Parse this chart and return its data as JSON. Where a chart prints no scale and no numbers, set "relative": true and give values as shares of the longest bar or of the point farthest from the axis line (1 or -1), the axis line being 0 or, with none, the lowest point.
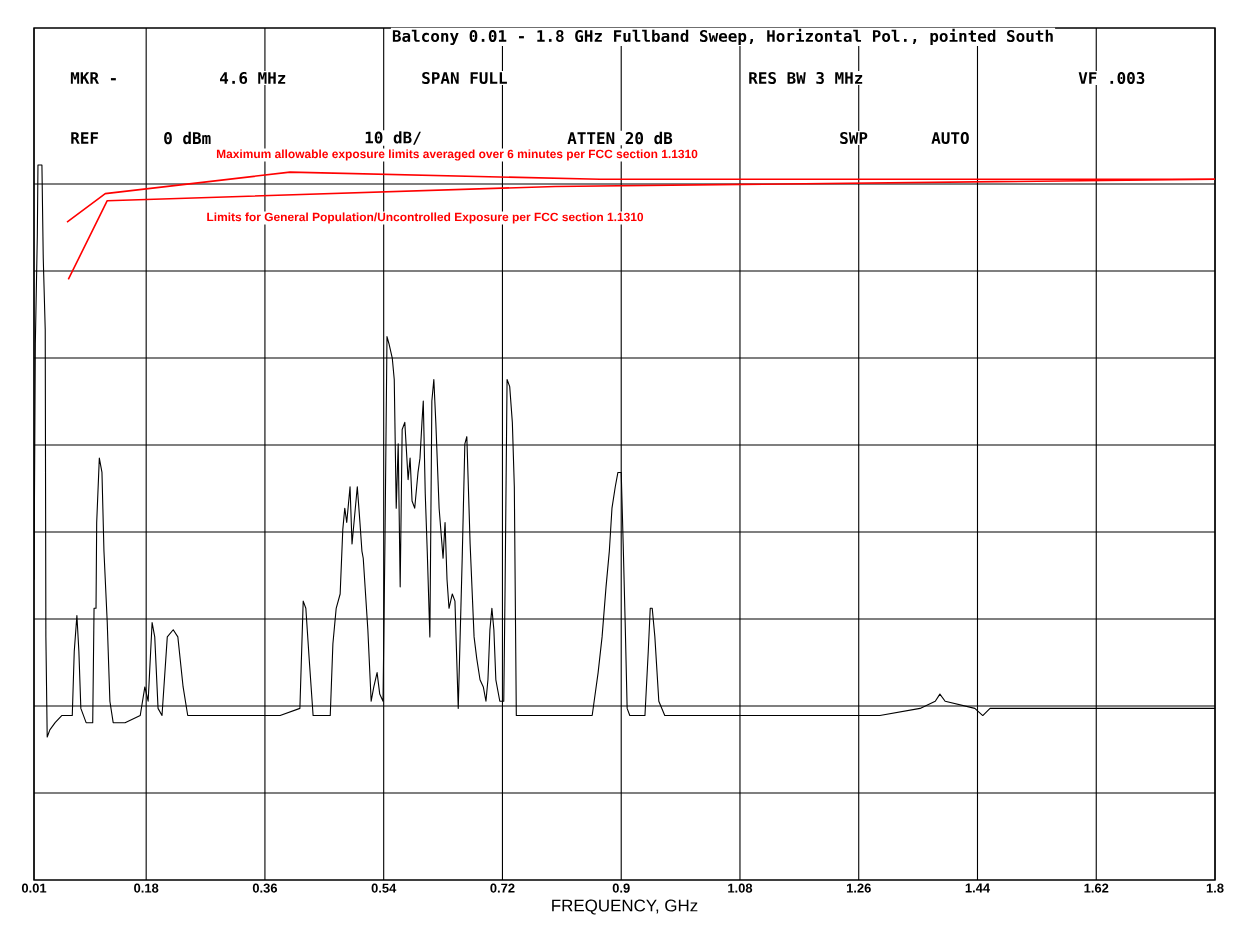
{
  "chart_data": {
    "type": "line",
    "title": "Balcony 0.01 - 1.8 GHz Fullband Sweep, Horizontal Pol., pointed South",
    "xlabel": "FREQUENCY, GHz",
    "annotations": [
      "MKR -",
      "4.6 MHz",
      "SPAN FULL",
      "RES BW 3 MHz",
      "VF .003",
      "REF",
      "0 dBm",
      "10 dB/",
      "ATTEN 20 dB",
      "SWP",
      "AUTO"
    ],
    "relative": true,
    "grid": true,
    "xlim": [
      0.01,
      1.8
    ],
    "xticks": [
      0.01,
      0.18,
      0.36,
      0.54,
      0.72,
      0.9,
      1.08,
      1.26,
      1.44,
      1.62,
      1.8
    ],
    "series": [
      {
        "color": "#000000",
        "x": [
          0.01,
          0.012,
          0.015,
          0.016,
          0.022,
          0.024,
          0.027,
          0.028,
          0.03,
          0.034,
          0.042,
          0.052,
          0.068,
          0.071,
          0.075,
          0.078,
          0.081,
          0.089,
          0.099,
          0.101,
          0.104,
          0.105,
          0.109,
          0.113,
          0.116,
          0.121,
          0.125,
          0.13,
          0.148,
          0.171,
          0.178,
          0.183,
          0.189,
          0.193,
          0.198,
          0.204,
          0.212,
          0.221,
          0.228,
          0.236,
          0.243,
          0.262,
          0.292,
          0.322,
          0.353,
          0.383,
          0.413,
          0.418,
          0.422,
          0.427,
          0.433,
          0.459,
          0.463,
          0.468,
          0.474,
          0.478,
          0.481,
          0.484,
          0.489,
          0.492,
          0.497,
          0.5,
          0.504,
          0.507,
          0.509,
          0.516,
          0.521,
          0.525,
          0.53,
          0.534,
          0.539,
          0.542,
          0.545,
          0.548,
          0.553,
          0.556,
          0.559,
          0.562,
          0.565,
          0.568,
          0.572,
          0.577,
          0.58,
          0.583,
          0.587,
          0.592,
          0.595,
          0.598,
          0.6,
          0.603,
          0.606,
          0.61,
          0.613,
          0.616,
          0.619,
          0.624,
          0.63,
          0.633,
          0.636,
          0.639,
          0.644,
          0.648,
          0.653,
          0.659,
          0.663,
          0.666,
          0.671,
          0.677,
          0.681,
          0.686,
          0.691,
          0.695,
          0.698,
          0.701,
          0.704,
          0.707,
          0.71,
          0.716,
          0.722,
          0.724,
          0.727,
          0.731,
          0.735,
          0.738,
          0.741,
          0.754,
          0.777,
          0.807,
          0.838,
          0.856,
          0.859,
          0.865,
          0.871,
          0.877,
          0.882,
          0.886,
          0.891,
          0.895,
          0.9,
          0.903,
          0.906,
          0.909,
          0.913,
          0.922,
          0.936,
          0.941,
          0.944,
          0.947,
          0.951,
          0.957,
          0.966,
          1.019,
          1.095,
          1.171,
          1.247,
          1.292,
          1.353,
          1.376,
          1.383,
          1.391,
          1.436,
          1.448,
          1.459,
          1.52,
          1.595,
          1.671,
          1.8
        ],
        "values": [
          0.42,
          0.75,
          0.9,
          1.0,
          1.0,
          0.87,
          0.77,
          0.34,
          0.2,
          0.21,
          0.22,
          0.23,
          0.23,
          0.32,
          0.37,
          0.32,
          0.24,
          0.22,
          0.22,
          0.38,
          0.38,
          0.5,
          0.59,
          0.57,
          0.46,
          0.36,
          0.25,
          0.22,
          0.22,
          0.23,
          0.27,
          0.25,
          0.36,
          0.34,
          0.24,
          0.23,
          0.34,
          0.35,
          0.34,
          0.27,
          0.23,
          0.23,
          0.23,
          0.23,
          0.23,
          0.23,
          0.24,
          0.39,
          0.38,
          0.31,
          0.23,
          0.23,
          0.33,
          0.38,
          0.4,
          0.49,
          0.52,
          0.5,
          0.55,
          0.47,
          0.52,
          0.55,
          0.5,
          0.46,
          0.45,
          0.35,
          0.25,
          0.27,
          0.29,
          0.26,
          0.25,
          0.48,
          0.76,
          0.75,
          0.73,
          0.7,
          0.52,
          0.61,
          0.41,
          0.63,
          0.64,
          0.56,
          0.59,
          0.53,
          0.52,
          0.57,
          0.59,
          0.64,
          0.67,
          0.54,
          0.46,
          0.34,
          0.67,
          0.7,
          0.64,
          0.52,
          0.45,
          0.5,
          0.42,
          0.38,
          0.4,
          0.39,
          0.24,
          0.45,
          0.61,
          0.62,
          0.47,
          0.34,
          0.31,
          0.28,
          0.27,
          0.25,
          0.28,
          0.35,
          0.38,
          0.35,
          0.28,
          0.25,
          0.25,
          0.41,
          0.7,
          0.69,
          0.64,
          0.55,
          0.23,
          0.23,
          0.23,
          0.23,
          0.23,
          0.23,
          0.25,
          0.29,
          0.34,
          0.41,
          0.46,
          0.52,
          0.55,
          0.57,
          0.57,
          0.47,
          0.36,
          0.24,
          0.23,
          0.23,
          0.23,
          0.32,
          0.38,
          0.38,
          0.34,
          0.25,
          0.23,
          0.23,
          0.23,
          0.23,
          0.23,
          0.23,
          0.24,
          0.25,
          0.26,
          0.25,
          0.24,
          0.23,
          0.24,
          0.24,
          0.24,
          0.24,
          0.24
        ]
      },
      {
        "name": "Maximum allowable exposure limits averaged over 6 minutes per FCC  section   1.1310",
        "color": "#ff0000",
        "x": [
          0.06,
          0.118,
          0.398,
          0.868,
          1.8
        ],
        "values": [
          0.92,
          0.96,
          0.99,
          0.98,
          0.98
        ]
      },
      {
        "name": "Limits for General Population/Uncontrolled Exposure per FCC  section   1.1310",
        "color": "#ff0000",
        "x": [
          0.062,
          0.121,
          0.8,
          1.8
        ],
        "values": [
          0.84,
          0.95,
          0.97,
          0.98
        ]
      }
    ]
  }
}
